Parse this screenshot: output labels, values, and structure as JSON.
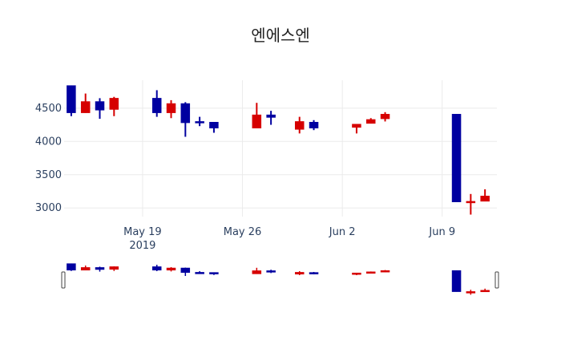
{
  "chart_data": {
    "type": "candlestick",
    "title": "엔에스엔",
    "xlabel": "",
    "ylabel": "",
    "increasing_color": "#d60000",
    "decreasing_color": "#0000a0",
    "ylim": [
      2870,
      4920
    ],
    "y_ticks": [
      3000,
      3500,
      4000,
      4500
    ],
    "x_ticks": [
      {
        "label": "May 19",
        "sublabel": "2019",
        "date": "2019-05-19"
      },
      {
        "label": "May 26",
        "sublabel": "",
        "date": "2019-05-26"
      },
      {
        "label": "Jun 2",
        "sublabel": "",
        "date": "2019-06-02"
      },
      {
        "label": "Jun 9",
        "sublabel": "",
        "date": "2019-06-09"
      }
    ],
    "xlim": [
      "2019-05-13T12:00",
      "2019-06-12T20:00"
    ],
    "grid": true,
    "rangeslider": true,
    "candles": [
      {
        "date": "2019-05-14",
        "open": 4840,
        "high": 4840,
        "low": 4380,
        "close": 4430
      },
      {
        "date": "2019-05-15",
        "open": 4430,
        "high": 4720,
        "low": 4430,
        "close": 4600
      },
      {
        "date": "2019-05-16",
        "open": 4600,
        "high": 4650,
        "low": 4340,
        "close": 4470
      },
      {
        "date": "2019-05-17",
        "open": 4480,
        "high": 4670,
        "low": 4380,
        "close": 4650
      },
      {
        "date": "2019-05-20",
        "open": 4650,
        "high": 4770,
        "low": 4370,
        "close": 4430
      },
      {
        "date": "2019-05-21",
        "open": 4430,
        "high": 4620,
        "low": 4350,
        "close": 4570
      },
      {
        "date": "2019-05-22",
        "open": 4570,
        "high": 4590,
        "low": 4070,
        "close": 4280
      },
      {
        "date": "2019-05-23",
        "open": 4300,
        "high": 4370,
        "low": 4230,
        "close": 4290
      },
      {
        "date": "2019-05-24",
        "open": 4290,
        "high": 4290,
        "low": 4130,
        "close": 4200
      },
      {
        "date": "2019-05-27",
        "open": 4200,
        "high": 4580,
        "low": 4200,
        "close": 4400
      },
      {
        "date": "2019-05-28",
        "open": 4400,
        "high": 4460,
        "low": 4250,
        "close": 4360
      },
      {
        "date": "2019-05-30",
        "open": 4180,
        "high": 4370,
        "low": 4120,
        "close": 4300
      },
      {
        "date": "2019-05-31",
        "open": 4290,
        "high": 4320,
        "low": 4170,
        "close": 4200
      },
      {
        "date": "2019-06-03",
        "open": 4210,
        "high": 4260,
        "low": 4120,
        "close": 4260
      },
      {
        "date": "2019-06-04",
        "open": 4270,
        "high": 4350,
        "low": 4270,
        "close": 4330
      },
      {
        "date": "2019-06-05",
        "open": 4340,
        "high": 4440,
        "low": 4300,
        "close": 4410
      },
      {
        "date": "2019-06-10",
        "open": 4410,
        "high": 4410,
        "low": 3090,
        "close": 3090
      },
      {
        "date": "2019-06-11",
        "open": 3090,
        "high": 3210,
        "low": 2900,
        "close": 3100
      },
      {
        "date": "2019-06-12",
        "open": 3100,
        "high": 3280,
        "low": 3100,
        "close": 3180
      }
    ]
  }
}
